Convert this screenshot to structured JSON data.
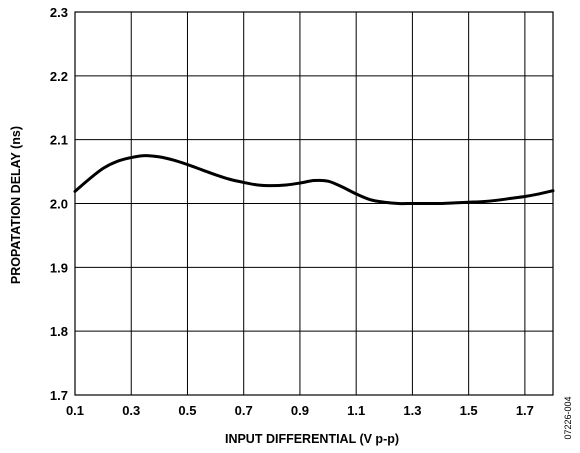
{
  "chart_data": {
    "type": "line",
    "title": "",
    "xlabel": "INPUT DIFFERENTIAL (V p-p)",
    "ylabel": "PROPATATION DELAY (ns)",
    "xlim": [
      0.1,
      1.8
    ],
    "ylim": [
      1.7,
      2.3
    ],
    "x_ticks": [
      0.1,
      0.3,
      0.5,
      0.7,
      0.9,
      1.1,
      1.3,
      1.5,
      1.7
    ],
    "x_tick_labels": [
      "0.1",
      "0.3",
      "0.5",
      "0.7",
      "0.9",
      "1.1",
      "1.3",
      "1.5",
      "1.7"
    ],
    "y_ticks": [
      1.7,
      1.8,
      1.9,
      2.0,
      2.1,
      2.2,
      2.3
    ],
    "y_tick_labels": [
      "1.7",
      "1.8",
      "1.9",
      "2.0",
      "2.1",
      "2.2",
      "2.3"
    ],
    "grid": true,
    "legend": "none",
    "series": [
      {
        "x": [
          0.1,
          0.15,
          0.2,
          0.25,
          0.3,
          0.35,
          0.4,
          0.45,
          0.5,
          0.55,
          0.6,
          0.65,
          0.7,
          0.75,
          0.8,
          0.85,
          0.9,
          0.95,
          1.0,
          1.05,
          1.1,
          1.15,
          1.2,
          1.25,
          1.3,
          1.35,
          1.4,
          1.45,
          1.5,
          1.55,
          1.6,
          1.65,
          1.7,
          1.75,
          1.8
        ],
        "y": [
          2.019,
          2.038,
          2.055,
          2.066,
          2.072,
          2.075,
          2.073,
          2.068,
          2.061,
          2.053,
          2.045,
          2.038,
          2.033,
          2.029,
          2.028,
          2.029,
          2.032,
          2.036,
          2.035,
          2.026,
          2.015,
          2.006,
          2.002,
          2.0,
          2.0,
          2.0,
          2.0,
          2.001,
          2.002,
          2.003,
          2.005,
          2.008,
          2.011,
          2.015,
          2.02
        ]
      }
    ]
  },
  "figure_id": "07226-004"
}
